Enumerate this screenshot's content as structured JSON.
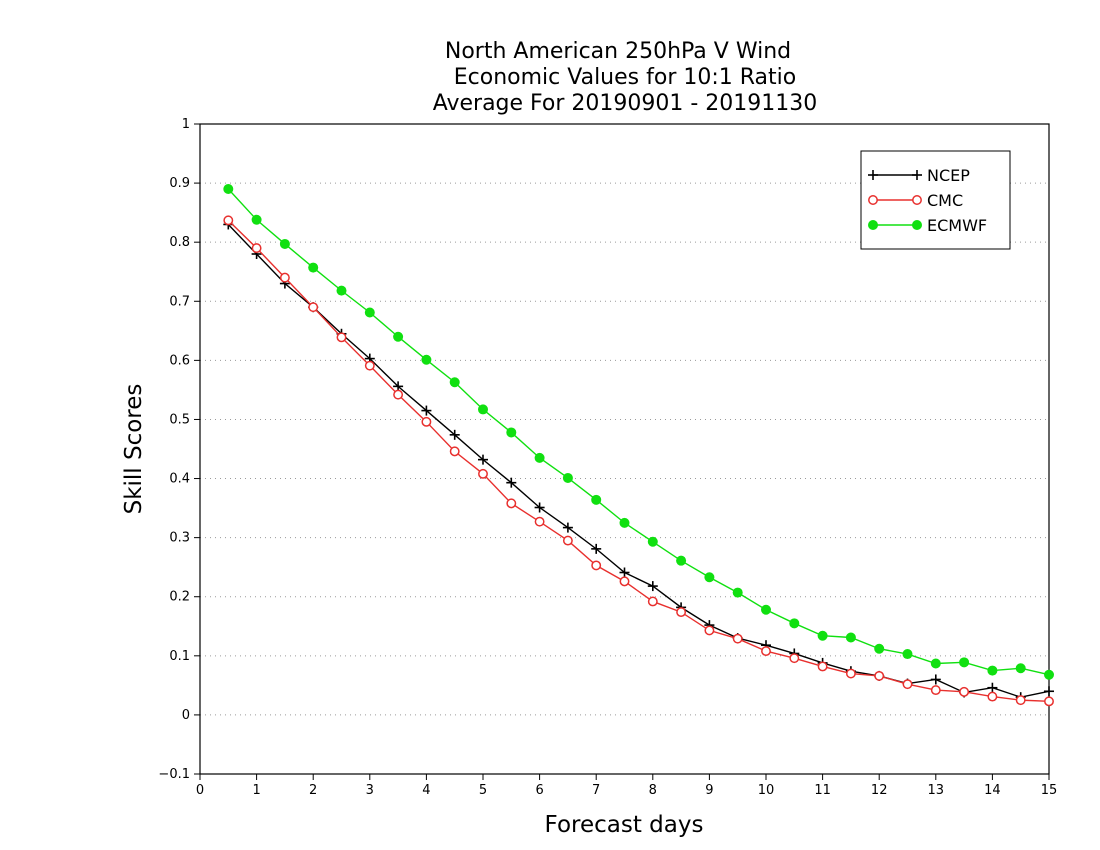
{
  "chart_data": {
    "type": "line",
    "title": [
      "North American 250hPa V Wind",
      "Economic Values for 10:1 Ratio",
      "Average For 20190901 - 20191130"
    ],
    "xlabel": "Forecast days",
    "ylabel": "Skill Scores",
    "xlim": [
      0,
      15
    ],
    "ylim": [
      -0.1,
      1
    ],
    "xticks": [
      "0",
      "1",
      "2",
      "3",
      "4",
      "5",
      "6",
      "7",
      "8",
      "9",
      "10",
      "11",
      "12",
      "13",
      "14",
      "15"
    ],
    "yticks": [
      "-0.1",
      "0",
      "0.1",
      "0.2",
      "0.3",
      "0.4",
      "0.5",
      "0.6",
      "0.7",
      "0.8",
      "0.9",
      "1"
    ],
    "grid": true,
    "legend_position": "top-right",
    "x": [
      0.5,
      1,
      1.5,
      2,
      2.5,
      3,
      3.5,
      4,
      4.5,
      5,
      5.5,
      6,
      6.5,
      7,
      7.5,
      8,
      8.5,
      9,
      9.5,
      10,
      10.5,
      11,
      11.5,
      12,
      12.5,
      13,
      13.5,
      14,
      14.5,
      15
    ],
    "series": [
      {
        "name": "NCEP",
        "color": "#000000",
        "marker": "plus",
        "values": [
          0.83,
          0.78,
          0.73,
          0.69,
          0.645,
          0.603,
          0.556,
          0.515,
          0.474,
          0.432,
          0.393,
          0.351,
          0.317,
          0.281,
          0.241,
          0.218,
          0.182,
          0.152,
          0.13,
          0.118,
          0.104,
          0.088,
          0.074,
          0.066,
          0.053,
          0.06,
          0.038,
          0.046,
          0.03,
          0.04
        ]
      },
      {
        "name": "CMC",
        "color": "#e8302e",
        "marker": "open-circle",
        "values": [
          0.837,
          0.79,
          0.74,
          0.69,
          0.639,
          0.591,
          0.542,
          0.496,
          0.446,
          0.408,
          0.358,
          0.327,
          0.295,
          0.253,
          0.226,
          0.192,
          0.174,
          0.143,
          0.129,
          0.108,
          0.096,
          0.082,
          0.07,
          0.066,
          0.052,
          0.042,
          0.039,
          0.031,
          0.025,
          0.023
        ]
      },
      {
        "name": "ECMWF",
        "color": "#10e010",
        "marker": "filled-circle",
        "values": [
          0.89,
          0.838,
          0.797,
          0.757,
          0.718,
          0.681,
          0.64,
          0.601,
          0.563,
          0.517,
          0.478,
          0.435,
          0.401,
          0.364,
          0.325,
          0.293,
          0.261,
          0.233,
          0.207,
          0.178,
          0.155,
          0.134,
          0.131,
          0.112,
          0.103,
          0.087,
          0.089,
          0.075,
          0.079,
          0.068
        ]
      }
    ]
  }
}
